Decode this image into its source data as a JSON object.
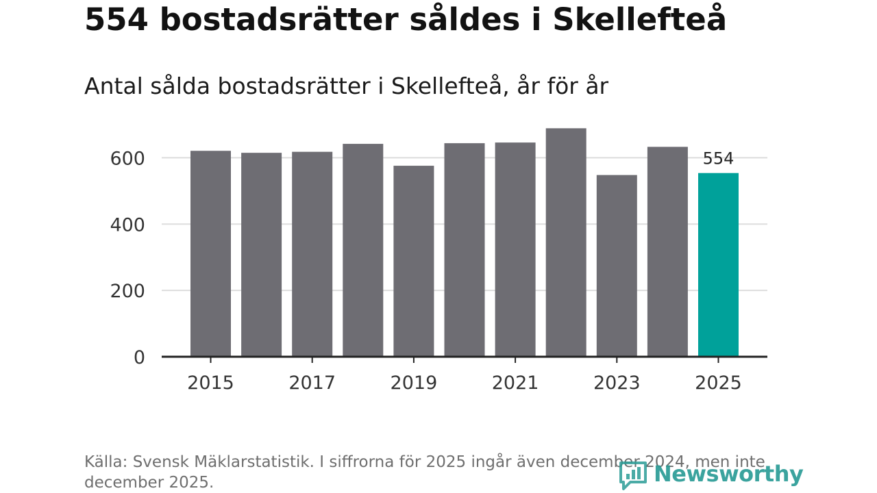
{
  "title": "554 bostadsrätter såldes i Skellefteå",
  "subtitle": "Antal sålda bostadsrätter i Skellefteå, år för år",
  "source": "Källa: Svensk Mäklarstatistik. I siffrorna för 2025 ingår även december 2024, men inte december 2025.",
  "brand": {
    "name": "Newsworthy"
  },
  "colors": {
    "bar": "#6e6d73",
    "highlight": "#00a19a",
    "grid": "#dddddd",
    "axis": "#222222",
    "brand": "#2b9c96"
  },
  "chart_data": {
    "type": "bar",
    "title": "554 bostadsrätter såldes i Skellefteå",
    "subtitle": "Antal sålda bostadsrätter i Skellefteå, år för år",
    "xlabel": "",
    "ylabel": "",
    "categories": [
      "2015",
      "2016",
      "2017",
      "2018",
      "2019",
      "2020",
      "2021",
      "2022",
      "2023",
      "2024",
      "2025"
    ],
    "values": [
      621,
      615,
      618,
      642,
      576,
      644,
      646,
      689,
      548,
      633,
      554
    ],
    "highlight_index": 10,
    "data_labels": [
      {
        "category": "2025",
        "text": "554"
      }
    ],
    "ylim": [
      0,
      700
    ],
    "yticks": [
      0,
      200,
      400,
      600
    ],
    "ytick_labels": [
      "0",
      "200",
      "400",
      "600"
    ],
    "xtick_labels": [
      "2015",
      "2017",
      "2019",
      "2021",
      "2023",
      "2025"
    ],
    "grid": true
  }
}
